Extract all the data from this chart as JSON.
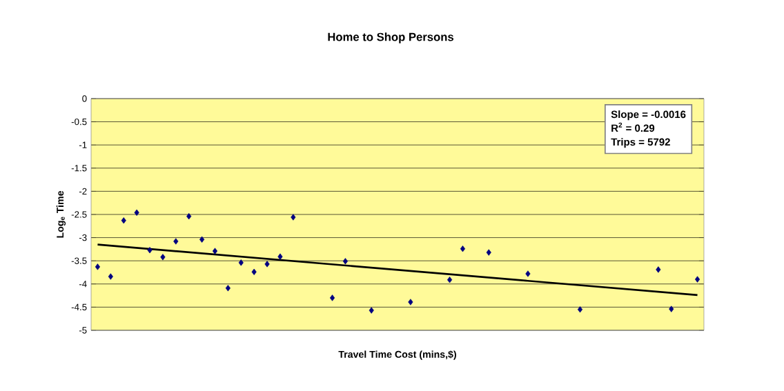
{
  "chart_data": {
    "type": "scatter",
    "title": "Home to Shop Persons",
    "xlabel": "Travel Time Cost (mins,$)",
    "ylabel": "Log$_{e}$ Time",
    "categories": [
      null,
      null,
      null,
      null,
      null,
      null,
      null,
      null,
      null,
      null,
      null,
      null,
      null,
      null,
      null,
      null,
      null,
      null,
      null,
      null,
      null,
      null,
      null,
      null,
      null,
      null,
      null,
      null,
      null,
      null,
      null,
      null,
      null,
      null,
      null,
      null,
      null,
      null,
      null,
      null,
      null,
      null,
      null,
      null,
      null,
      null,
      null
    ],
    "series": [
      {
        "color": "#000080",
        "marker": "diamond",
        "values": [
          -3.63,
          -3.84,
          -2.63,
          -2.46,
          -3.27,
          -3.42,
          -3.08,
          -2.54,
          -3.04,
          -3.29,
          -4.09,
          -3.54,
          -3.74,
          -3.57,
          -3.41,
          -2.56,
          null,
          null,
          -4.3,
          -3.51,
          null,
          -4.57,
          null,
          null,
          -4.39,
          null,
          null,
          -3.91,
          -3.24,
          null,
          -3.32,
          null,
          null,
          -3.78,
          null,
          null,
          null,
          -4.55,
          null,
          null,
          null,
          null,
          null,
          -3.69,
          -4.54,
          null,
          -3.9
        ]
      },
      {
        "type": "line",
        "color": "#000000",
        "marker": "none",
        "line_style": "solid",
        "values": [
          -3.15,
          null,
          null,
          null,
          null,
          null,
          null,
          null,
          null,
          null,
          null,
          null,
          null,
          null,
          null,
          null,
          null,
          null,
          null,
          null,
          null,
          null,
          null,
          null,
          null,
          null,
          null,
          null,
          null,
          null,
          null,
          null,
          null,
          null,
          null,
          null,
          null,
          null,
          null,
          null,
          null,
          null,
          null,
          null,
          null,
          null,
          -4.24
        ]
      }
    ],
    "ylim": [
      -5,
      0
    ],
    "yticks": [
      0,
      -0.5,
      -1,
      -1.5,
      -2,
      -2.5,
      -3,
      -3.5,
      -4,
      -4.5,
      -5
    ],
    "grid": "y",
    "tick_labels": "y",
    "annotations": [
      "Slope = -0.0016",
      "R$^{2}$ = 0.29",
      "Trips = 5792"
    ]
  }
}
